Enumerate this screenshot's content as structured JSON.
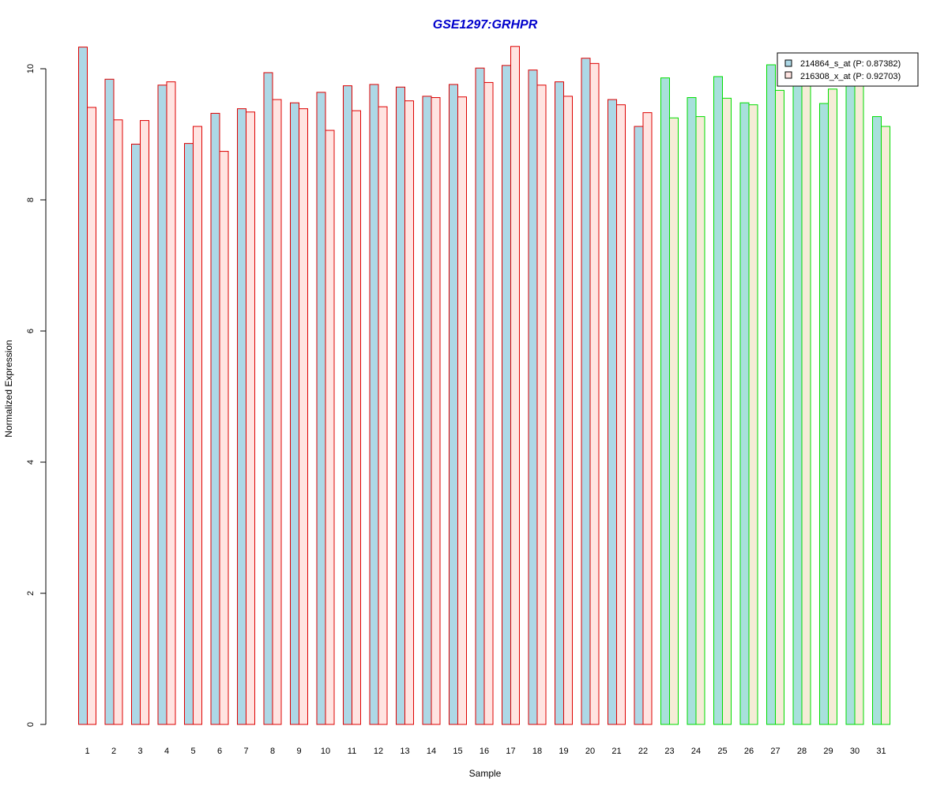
{
  "chart_data": {
    "type": "bar",
    "title": "GSE1297:GRHPR",
    "xlabel": "Sample",
    "ylabel": "Normalized Expression",
    "ylim": [
      0,
      10.4
    ],
    "yticks": [
      0,
      2,
      4,
      6,
      8,
      10
    ],
    "categories": [
      "1",
      "2",
      "3",
      "4",
      "5",
      "6",
      "7",
      "8",
      "9",
      "10",
      "11",
      "12",
      "13",
      "14",
      "15",
      "16",
      "17",
      "18",
      "19",
      "20",
      "21",
      "22",
      "23",
      "24",
      "25",
      "26",
      "27",
      "28",
      "29",
      "30",
      "31"
    ],
    "series": [
      {
        "name": "214864_s_at (P: 0.87382)",
        "fill": "#add8e6",
        "values": [
          10.33,
          9.84,
          8.85,
          9.75,
          8.86,
          9.32,
          9.39,
          9.94,
          9.48,
          9.64,
          9.74,
          9.76,
          9.72,
          9.58,
          9.76,
          10.01,
          10.05,
          9.98,
          9.8,
          10.16,
          9.53,
          9.12,
          9.86,
          9.56,
          9.88,
          9.48,
          10.06,
          9.9,
          9.47,
          9.85,
          9.27
        ]
      },
      {
        "name": "216308_x_at (P: 0.92703)",
        "fill": "#ffe4e1",
        "values": [
          9.41,
          9.22,
          9.21,
          9.8,
          9.12,
          8.74,
          9.34,
          9.53,
          9.39,
          9.06,
          9.36,
          9.42,
          9.51,
          9.56,
          9.57,
          9.79,
          10.34,
          9.75,
          9.58,
          10.08,
          9.45,
          9.33,
          9.25,
          9.27,
          9.55,
          9.45,
          9.67,
          9.9,
          9.69,
          9.87,
          9.12
        ]
      }
    ],
    "group_border_colors": [
      "#dd0000",
      "#00dd00"
    ],
    "group_sizes": [
      22,
      9
    ],
    "second_series_fill_green_group": "#f5ecd7",
    "first_series_fill_green_group": "#a8e0dc",
    "title_color": "#0000cc",
    "legend_position": "top-right",
    "grid": false
  }
}
